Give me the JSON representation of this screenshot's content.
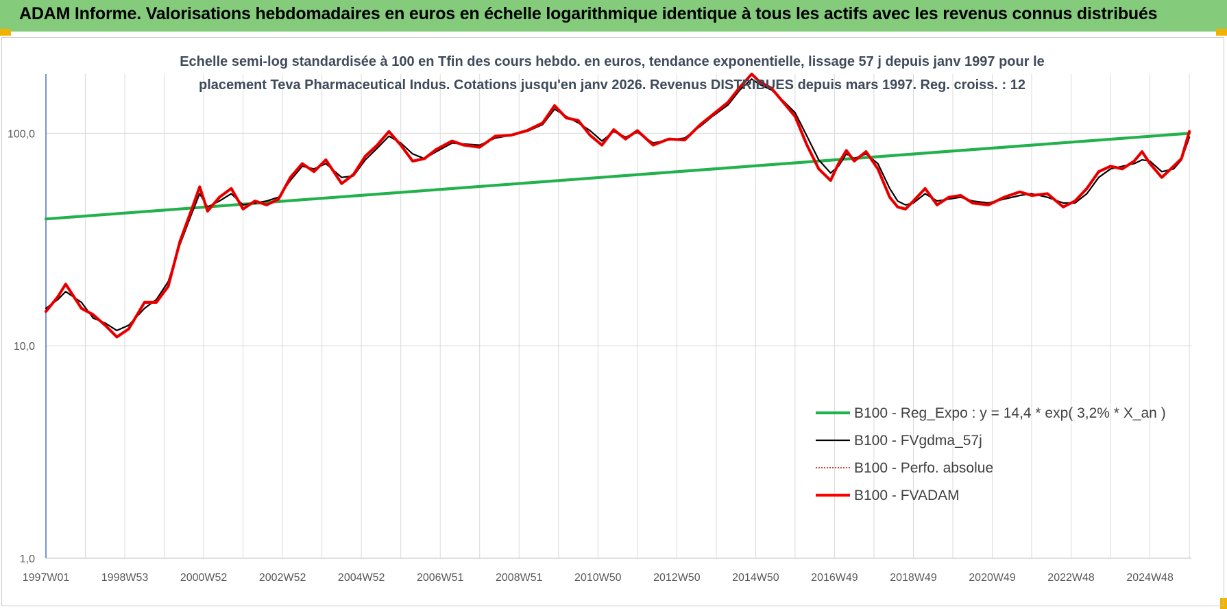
{
  "header": {
    "title": "ADAM Informe. Valorisations hebdomadaires en euros en échelle logarithmique identique à tous les actifs avec les revenus connus distribués"
  },
  "chart_data": {
    "type": "line",
    "title": "ADAM Informe. Valorisations hebdomadaires en euros en échelle logarithmique identique à tous les actifs avec les revenus connus distribués",
    "subtitle_lines": [
      "Echelle semi-log standardisée à 100 en Tfin des cours hebdo. en euros, tendance exponentielle, lissage 57 j depuis janv 1997 pour le",
      "placement Teva Pharmaceutical Indus. Cotations jusqu'en janv 2026. Revenus DISTRIBUES depuis mars 1997. Reg. croiss. : 12"
    ],
    "y_scale": "log",
    "ylim": [
      1,
      190
    ],
    "y_ticks": [
      {
        "value": 1,
        "label": "1,0"
      },
      {
        "value": 10,
        "label": "10,0"
      },
      {
        "value": 100,
        "label": "100,0"
      }
    ],
    "xlim": [
      1997.0,
      2026.05
    ],
    "x_ticks": [
      {
        "value": 1997.0,
        "label": "1997W01"
      },
      {
        "value": 1999.0,
        "label": "1998W53"
      },
      {
        "value": 2001.0,
        "label": "2000W52"
      },
      {
        "value": 2003.0,
        "label": "2002W52"
      },
      {
        "value": 2005.0,
        "label": "2004W52"
      },
      {
        "value": 2007.0,
        "label": "2006W51"
      },
      {
        "value": 2009.0,
        "label": "2008W51"
      },
      {
        "value": 2011.0,
        "label": "2010W50"
      },
      {
        "value": 2013.0,
        "label": "2012W50"
      },
      {
        "value": 2015.0,
        "label": "2014W50"
      },
      {
        "value": 2017.0,
        "label": "2016W49"
      },
      {
        "value": 2019.0,
        "label": "2018W49"
      },
      {
        "value": 2021.0,
        "label": "2020W49"
      },
      {
        "value": 2023.0,
        "label": "2022W48"
      },
      {
        "value": 2025.0,
        "label": "2024W48"
      }
    ],
    "grid": "vertical",
    "legend_position": "bottom-right",
    "series": [
      {
        "name": "B100 - Reg_Expo : y = 14,4 * exp( 3,2% *  X_an )",
        "color": "#22b14c",
        "style": "solid-thick",
        "x": [
          1997.0,
          2026.0
        ],
        "y": [
          39.5,
          100.0
        ]
      },
      {
        "name": "B100 - FVgdma_57j",
        "color": "#000000",
        "style": "solid-thin",
        "x": [
          1997.0,
          1997.3,
          1997.5,
          1997.9,
          1998.2,
          1998.5,
          1998.8,
          1999.1,
          1999.5,
          1999.8,
          2000.1,
          2000.4,
          2000.7,
          2000.9,
          2001.1,
          2001.4,
          2001.7,
          2002.0,
          2002.3,
          2002.6,
          2002.9,
          2003.2,
          2003.5,
          2003.8,
          2004.1,
          2004.5,
          2004.8,
          2005.1,
          2005.4,
          2005.7,
          2006.0,
          2006.3,
          2006.6,
          2006.9,
          2007.3,
          2007.6,
          2008.0,
          2008.4,
          2008.8,
          2009.2,
          2009.6,
          2009.9,
          2010.2,
          2010.5,
          2010.8,
          2011.1,
          2011.4,
          2011.7,
          2012.0,
          2012.4,
          2012.8,
          2013.2,
          2013.6,
          2013.9,
          2014.3,
          2014.6,
          2014.9,
          2015.1,
          2015.4,
          2015.7,
          2016.0,
          2016.3,
          2016.6,
          2016.9,
          2017.1,
          2017.3,
          2017.5,
          2017.8,
          2018.1,
          2018.4,
          2018.6,
          2018.8,
          2019.0,
          2019.3,
          2019.6,
          2019.9,
          2020.2,
          2020.5,
          2020.9,
          2021.3,
          2021.7,
          2022.0,
          2022.4,
          2022.8,
          2023.1,
          2023.4,
          2023.7,
          2024.0,
          2024.3,
          2024.6,
          2024.8,
          2025.0,
          2025.3,
          2025.6,
          2025.8,
          2026.0
        ],
        "y": [
          15,
          16.5,
          18,
          16,
          13.5,
          12.8,
          11.8,
          12.5,
          15,
          16.5,
          20,
          30,
          42,
          52,
          45,
          48,
          52,
          46,
          47,
          48,
          50,
          60,
          70,
          68,
          72,
          62,
          63,
          75,
          85,
          97,
          90,
          80,
          76,
          82,
          90,
          89,
          88,
          95,
          98,
          102,
          110,
          130,
          120,
          112,
          103,
          92,
          102,
          96,
          101,
          90,
          93,
          95,
          108,
          120,
          136,
          160,
          180,
          170,
          160,
          142,
          125,
          97,
          75,
          65,
          70,
          80,
          76,
          80,
          72,
          55,
          48,
          46,
          47,
          52,
          48,
          49,
          50,
          48,
          47,
          49,
          51,
          52,
          50,
          47,
          47,
          52,
          62,
          68,
          70,
          72,
          75,
          74,
          66,
          68,
          75,
          96
        ]
      },
      {
        "name": "B100 - Perfo. absolue",
        "color": "#c00000",
        "style": "dotted",
        "x": [
          1997.0,
          1997.3,
          1997.5,
          1997.9,
          1998.2,
          1998.5,
          1998.8,
          1999.1,
          1999.5,
          1999.8,
          2000.1,
          2000.4,
          2000.7,
          2000.9,
          2001.1,
          2001.4,
          2001.7,
          2002.0,
          2002.3,
          2002.6,
          2002.9,
          2003.2,
          2003.5,
          2003.8,
          2004.1,
          2004.5,
          2004.8,
          2005.1,
          2005.4,
          2005.7,
          2006.0,
          2006.3,
          2006.6,
          2006.9,
          2007.3,
          2007.6,
          2008.0,
          2008.4,
          2008.8,
          2009.2,
          2009.6,
          2009.9,
          2010.2,
          2010.5,
          2010.8,
          2011.1,
          2011.4,
          2011.7,
          2012.0,
          2012.4,
          2012.8,
          2013.2,
          2013.6,
          2013.9,
          2014.3,
          2014.6,
          2014.9,
          2015.1,
          2015.4,
          2015.7,
          2016.0,
          2016.3,
          2016.6,
          2016.9,
          2017.1,
          2017.3,
          2017.5,
          2017.8,
          2018.1,
          2018.4,
          2018.6,
          2018.8,
          2019.0,
          2019.3,
          2019.6,
          2019.9,
          2020.2,
          2020.5,
          2020.9,
          2021.3,
          2021.7,
          2022.0,
          2022.4,
          2022.8,
          2023.1,
          2023.4,
          2023.7,
          2024.0,
          2024.3,
          2024.6,
          2024.8,
          2025.0,
          2025.3,
          2025.6,
          2025.8,
          2026.0
        ],
        "y": [
          14.5,
          17,
          19.5,
          15,
          14,
          12.5,
          11,
          12,
          16,
          16,
          19,
          31,
          44,
          56,
          43,
          50,
          55,
          44,
          48,
          46,
          49,
          62,
          72,
          66,
          75,
          58,
          64,
          78,
          88,
          102,
          88,
          74,
          76,
          84,
          92,
          88,
          86,
          97,
          98,
          103,
          112,
          135,
          118,
          115,
          98,
          88,
          104,
          94,
          103,
          88,
          94,
          93,
          110,
          122,
          140,
          165,
          190,
          175,
          163,
          140,
          120,
          88,
          68,
          60,
          72,
          83,
          74,
          82,
          68,
          50,
          45,
          44,
          48,
          55,
          46,
          50,
          51,
          47,
          46,
          50,
          53,
          51,
          52,
          45,
          48,
          55,
          66,
          70,
          68,
          74,
          82,
          72,
          62,
          70,
          76,
          102
        ]
      },
      {
        "name": "B100 - FVADAM",
        "color": "#ff0000",
        "style": "solid-thick",
        "x": [
          1997.0,
          1997.3,
          1997.5,
          1997.9,
          1998.2,
          1998.5,
          1998.8,
          1999.1,
          1999.5,
          1999.8,
          2000.1,
          2000.4,
          2000.7,
          2000.9,
          2001.1,
          2001.4,
          2001.7,
          2002.0,
          2002.3,
          2002.6,
          2002.9,
          2003.2,
          2003.5,
          2003.8,
          2004.1,
          2004.5,
          2004.8,
          2005.1,
          2005.4,
          2005.7,
          2006.0,
          2006.3,
          2006.6,
          2006.9,
          2007.3,
          2007.6,
          2008.0,
          2008.4,
          2008.8,
          2009.2,
          2009.6,
          2009.9,
          2010.2,
          2010.5,
          2010.8,
          2011.1,
          2011.4,
          2011.7,
          2012.0,
          2012.4,
          2012.8,
          2013.2,
          2013.6,
          2013.9,
          2014.3,
          2014.6,
          2014.9,
          2015.1,
          2015.4,
          2015.7,
          2016.0,
          2016.3,
          2016.6,
          2016.9,
          2017.1,
          2017.3,
          2017.5,
          2017.8,
          2018.1,
          2018.4,
          2018.6,
          2018.8,
          2019.0,
          2019.3,
          2019.6,
          2019.9,
          2020.2,
          2020.5,
          2020.9,
          2021.3,
          2021.7,
          2022.0,
          2022.4,
          2022.8,
          2023.1,
          2023.4,
          2023.7,
          2024.0,
          2024.3,
          2024.6,
          2024.8,
          2025.0,
          2025.3,
          2025.6,
          2025.8,
          2026.0
        ],
        "y": [
          14.5,
          17,
          19.5,
          15,
          14,
          12.5,
          11,
          12,
          16,
          16,
          19,
          31,
          44,
          56,
          43,
          50,
          55,
          44,
          48,
          46,
          49,
          62,
          72,
          66,
          75,
          58,
          64,
          78,
          88,
          102,
          88,
          74,
          76,
          84,
          92,
          88,
          86,
          97,
          98,
          103,
          112,
          135,
          118,
          115,
          98,
          88,
          104,
          94,
          103,
          88,
          94,
          93,
          110,
          122,
          140,
          165,
          190,
          175,
          163,
          140,
          120,
          88,
          68,
          60,
          72,
          83,
          74,
          82,
          68,
          50,
          45,
          44,
          48,
          55,
          46,
          50,
          51,
          47,
          46,
          50,
          53,
          51,
          52,
          45,
          48,
          55,
          66,
          70,
          68,
          74,
          82,
          72,
          62,
          70,
          76,
          102
        ]
      }
    ]
  }
}
